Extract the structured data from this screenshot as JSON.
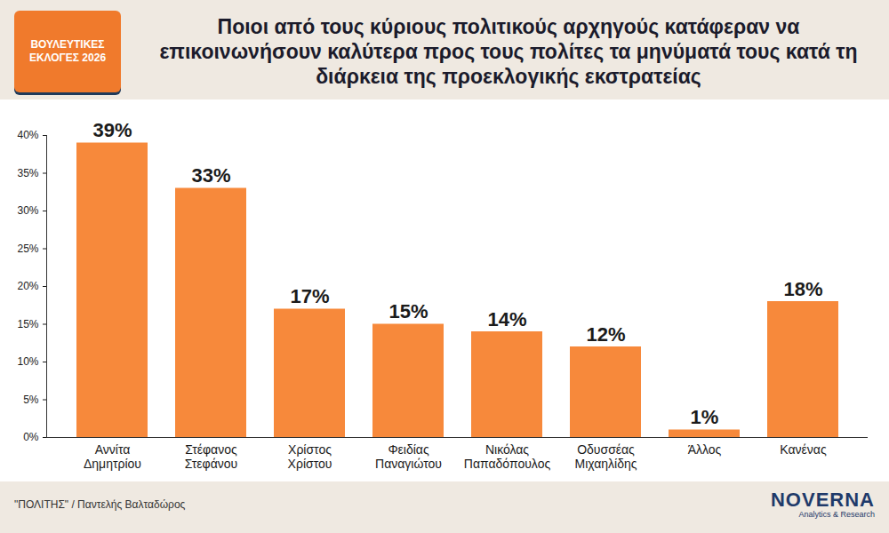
{
  "chart_data": {
    "type": "bar",
    "title": "Ποιοι από τους κύριους πολιτικούς αρχηγούς κατάφεραν να επικοινωνήσουν καλύτερα προς τους πολίτες τα μηνύματά τους κατά τη διάρκεια της προεκλογικής εκστρατείας",
    "annotations": {
      "badge": "ΒΟΥΛΕΥΤΙΚΕΣ ΕΚΛΟΓΕΣ 2026",
      "source": "\"ΠΟΛΙΤΗΣ\" / Παντελής Βαλταδώρος",
      "logo": "NOVERNA",
      "logo_tagline": "Analytics & Research"
    },
    "categories": [
      "Αννίτα Δημητρίου",
      "Στέφανος Στεφάνου",
      "Χρίστος Χρίστου",
      "Φειδίας Παναγιώτου",
      "Νικόλας Παπαδόπουλος",
      "Οδυσσέας Μιχαηλίδης",
      "Άλλος",
      "Κανένας"
    ],
    "values": [
      39,
      33,
      17,
      15,
      14,
      12,
      1,
      18
    ],
    "value_labels": [
      "39%",
      "33%",
      "17%",
      "15%",
      "14%",
      "12%",
      "1%",
      "18%"
    ],
    "color": "#f7893b",
    "ylim": [
      0,
      40
    ],
    "yticks": [
      {
        "value": 0,
        "label": "0%"
      },
      {
        "value": 5,
        "label": "5%"
      },
      {
        "value": 10,
        "label": "10%"
      },
      {
        "value": 15,
        "label": "15%"
      },
      {
        "value": 20,
        "label": "20%"
      },
      {
        "value": 25,
        "label": "25%"
      },
      {
        "value": 30,
        "label": "30%"
      },
      {
        "value": 35,
        "label": "35%"
      },
      {
        "value": 40,
        "label": "40%"
      }
    ],
    "grid": false,
    "data_labels": true
  }
}
